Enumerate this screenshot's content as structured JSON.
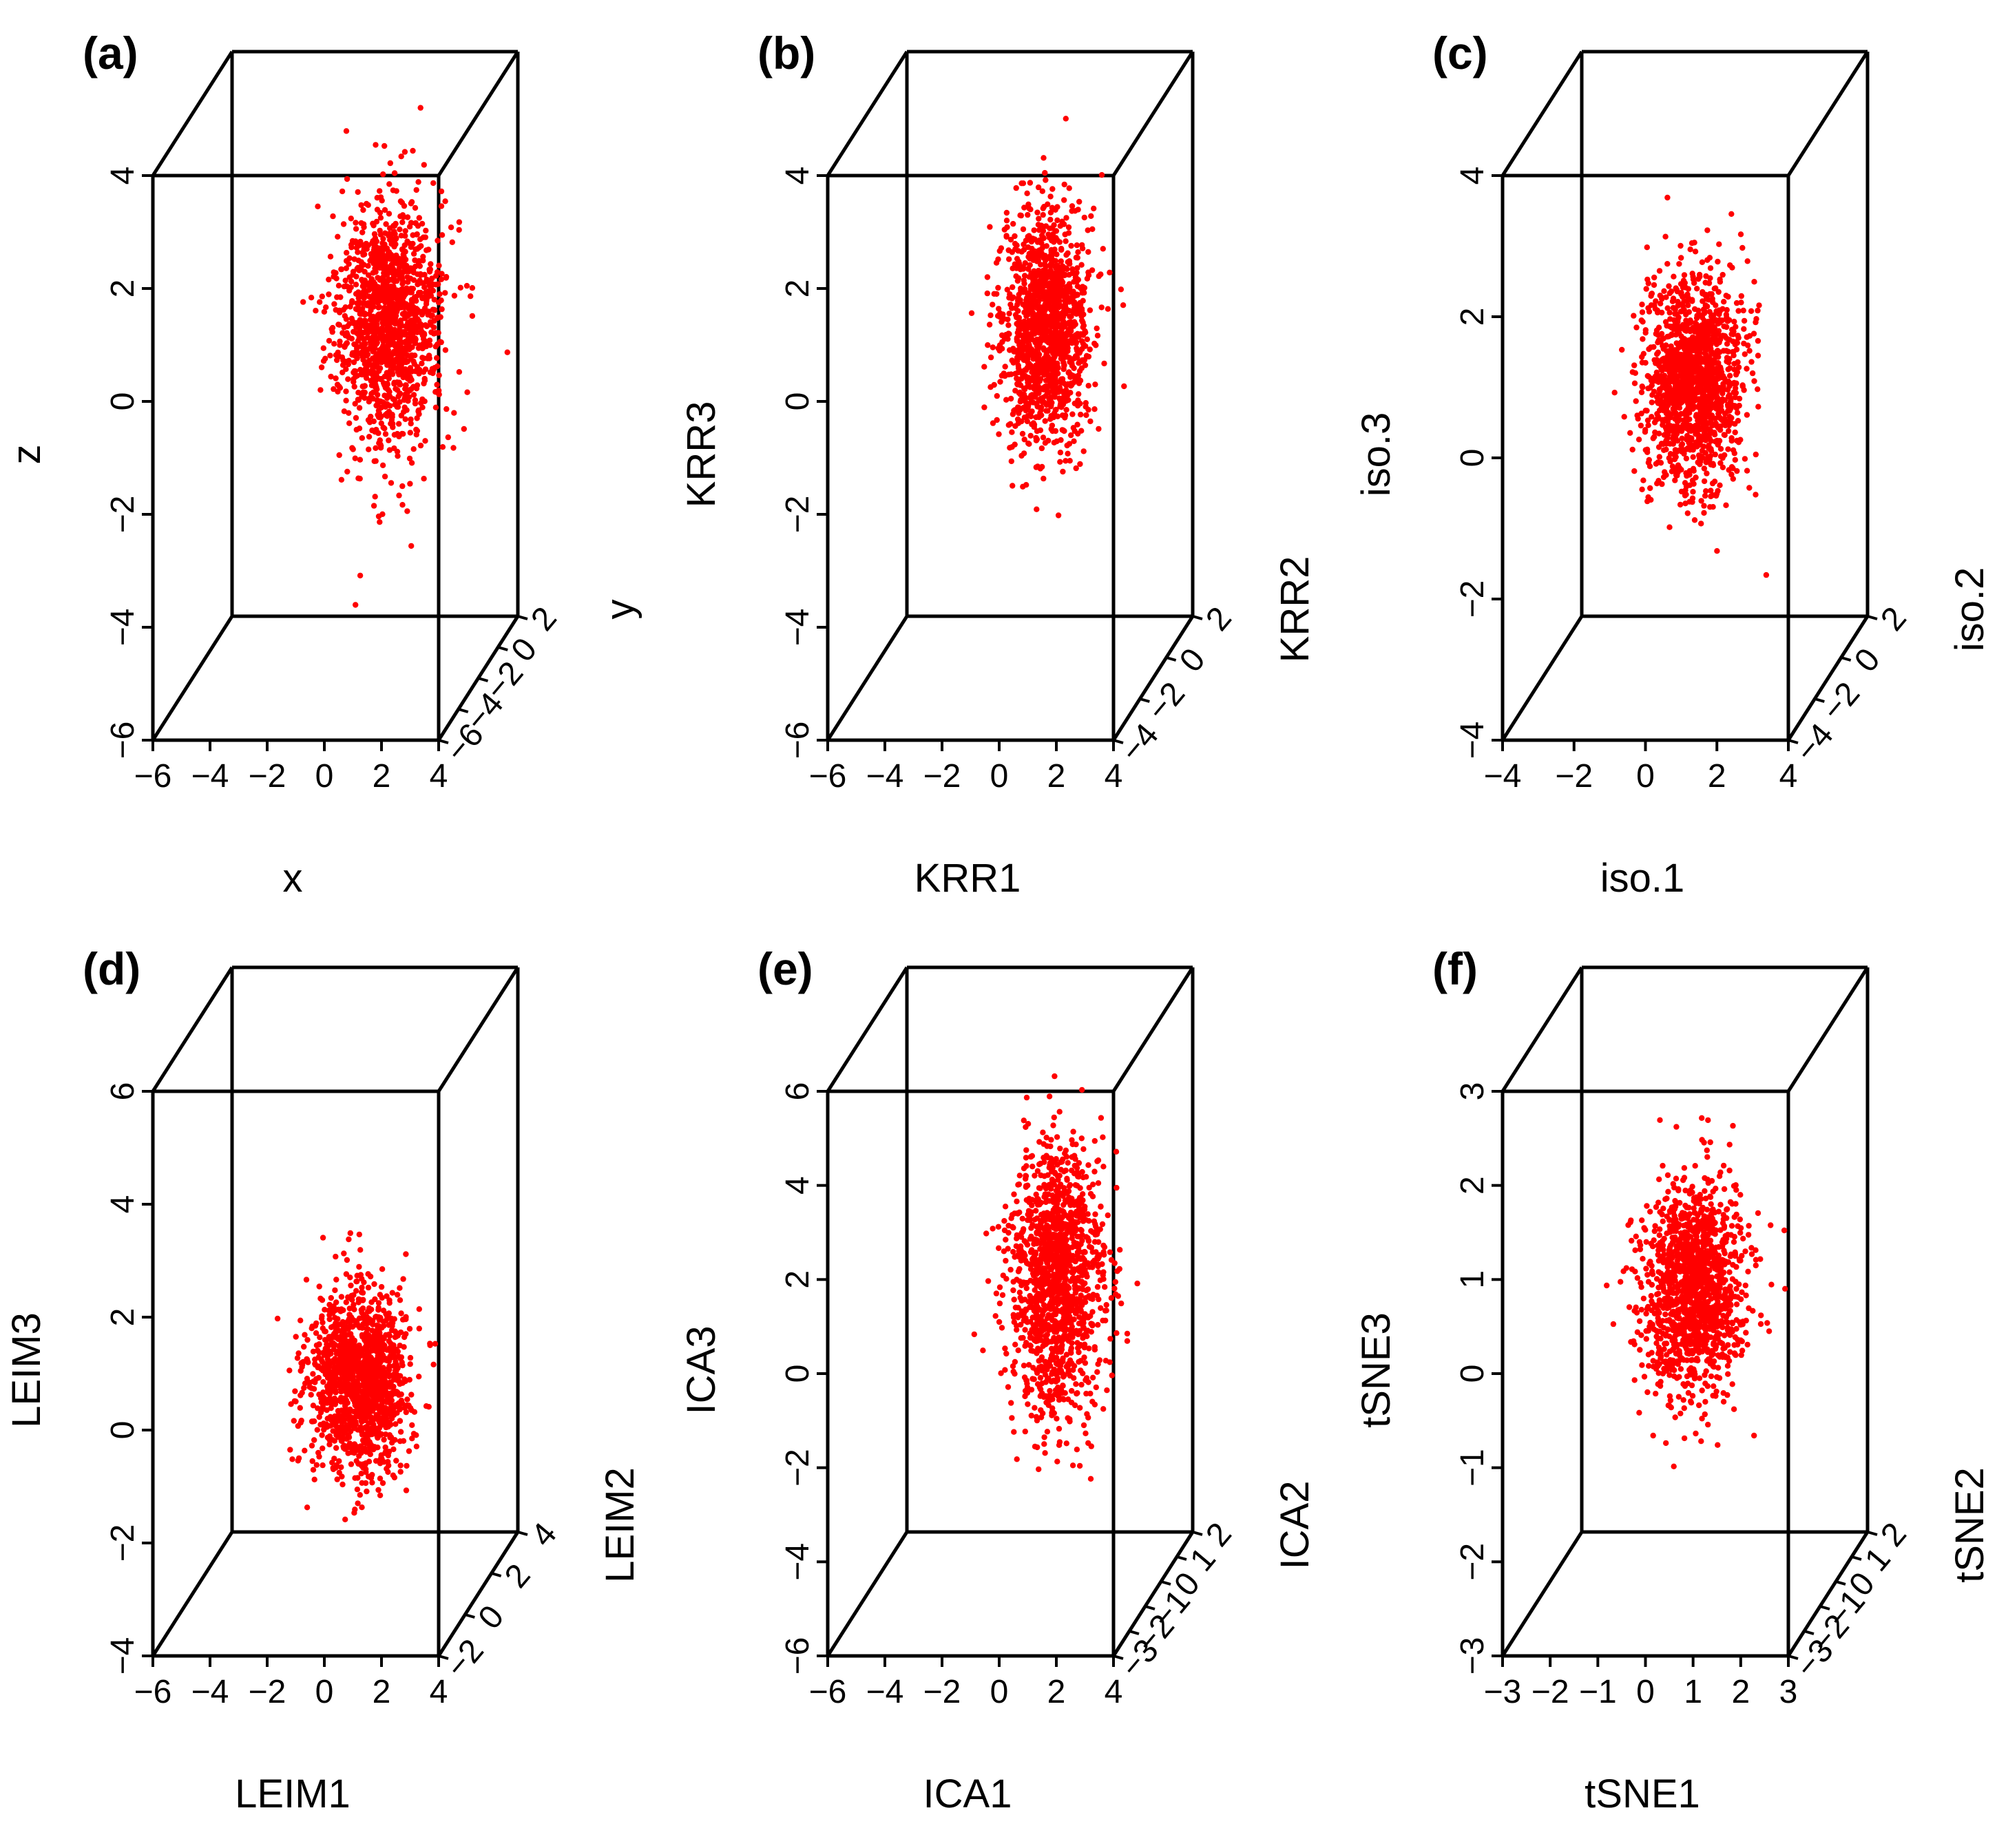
{
  "figure": {
    "background": "#ffffff",
    "point_color": "#ff0000",
    "line_color": "#000000"
  },
  "chart_data": [
    {
      "type": "scatter3d",
      "panel": "(a)",
      "xlabel": "x",
      "ylabel": "y",
      "zlabel": "z",
      "xlim": [
        -6,
        4
      ],
      "ylim": [
        -6,
        2
      ],
      "zlim": [
        -6,
        4
      ],
      "xticks": [
        "-6",
        "-4",
        "-2",
        "0",
        "2",
        "4"
      ],
      "yticks": [
        "-6",
        "-4",
        "-2",
        "0",
        "2"
      ],
      "zticks": [
        "-6",
        "-4",
        "-2",
        "0",
        "2",
        "4"
      ],
      "cluster": {
        "center": [
          1.4,
          0,
          0.8
        ],
        "spread": [
          1.3,
          1,
          1.1
        ],
        "tail_down": 1
      },
      "points_color": "#ff0000"
    },
    {
      "type": "scatter3d",
      "panel": "(b)",
      "xlabel": "KRR1",
      "ylabel": "KRR2",
      "zlabel": "KRR3",
      "xlim": [
        -6,
        4
      ],
      "ylim": [
        -4,
        2
      ],
      "zlim": [
        -6,
        4
      ],
      "xticks": [
        "-6",
        "-4",
        "-2",
        "0",
        "2",
        "4"
      ],
      "yticks": [
        "-4",
        "-2",
        "0",
        "2"
      ],
      "zticks": [
        "-6",
        "-4",
        "-2",
        "0",
        "2",
        "4"
      ],
      "cluster": {
        "center": [
          0.8,
          0,
          0.6
        ],
        "spread": [
          1.0,
          1,
          1.1
        ],
        "tail_down": 0
      },
      "points_color": "#ff0000"
    },
    {
      "type": "scatter3d",
      "panel": "(c)",
      "xlabel": "iso.1",
      "ylabel": "iso.2",
      "zlabel": "iso.3",
      "xlim": [
        -4,
        4
      ],
      "ylim": [
        -4,
        2
      ],
      "zlim": [
        -4,
        4
      ],
      "xticks": [
        "-4",
        "-2",
        "0",
        "2",
        "4"
      ],
      "yticks": [
        "-4",
        "-2",
        "0",
        "2"
      ],
      "zticks": [
        "-4",
        "-2",
        "0",
        "2",
        "4"
      ],
      "cluster": {
        "center": [
          0.7,
          0,
          0.6
        ],
        "spread": [
          1.2,
          1,
          1.0
        ],
        "tail_down": 0
      },
      "points_color": "#ff0000"
    },
    {
      "type": "scatter3d",
      "panel": "(d)",
      "xlabel": "LEIM1",
      "ylabel": "LEIM2",
      "zlabel": "LEIM3",
      "xlim": [
        -6,
        4
      ],
      "ylim": [
        -2,
        4
      ],
      "zlim": [
        -4,
        6
      ],
      "xticks": [
        "-6",
        "-4",
        "-2",
        "0",
        "2",
        "4"
      ],
      "yticks": [
        "-2",
        "0",
        "2",
        "4"
      ],
      "zticks": [
        "-4",
        "-2",
        "0",
        "2",
        "4",
        "6"
      ],
      "cluster": {
        "center": [
          0.4,
          0,
          0.2
        ],
        "spread": [
          1.2,
          1,
          0.9
        ],
        "tail_down": 0
      },
      "points_color": "#ff0000"
    },
    {
      "type": "scatter3d",
      "panel": "(e)",
      "xlabel": "ICA1",
      "ylabel": "ICA2",
      "zlabel": "ICA3",
      "xlim": [
        -6,
        4
      ],
      "ylim": [
        -3,
        2
      ],
      "zlim": [
        -6,
        6
      ],
      "xticks": [
        "-6",
        "-4",
        "-2",
        "0",
        "2",
        "4"
      ],
      "yticks": [
        "-3",
        "-2",
        "-1",
        "0",
        "1",
        "2"
      ],
      "zticks": [
        "-6",
        "-4",
        "-2",
        "0",
        "2",
        "4",
        "6"
      ],
      "cluster": {
        "center": [
          1.2,
          0,
          1.2
        ],
        "spread": [
          1.1,
          1,
          1.3
        ],
        "tail_down": 0
      },
      "points_color": "#ff0000"
    },
    {
      "type": "scatter3d",
      "panel": "(f)",
      "xlabel": "tSNE1",
      "ylabel": "tSNE2",
      "zlabel": "tSNE3",
      "xlim": [
        -3,
        3
      ],
      "ylim": [
        -3,
        2
      ],
      "zlim": [
        -3,
        3
      ],
      "xticks": [
        "-3",
        "-2",
        "-1",
        "0",
        "1",
        "2",
        "3"
      ],
      "yticks": [
        "-3",
        "-2",
        "-1",
        "0",
        "1",
        "2"
      ],
      "zticks": [
        "-3",
        "-2",
        "-1",
        "0",
        "1",
        "2",
        "3"
      ],
      "cluster": {
        "center": [
          0.5,
          0,
          0.5
        ],
        "spread": [
          1.2,
          1,
          1.0
        ],
        "tail_down": 0
      },
      "points_color": "#ff0000"
    }
  ]
}
